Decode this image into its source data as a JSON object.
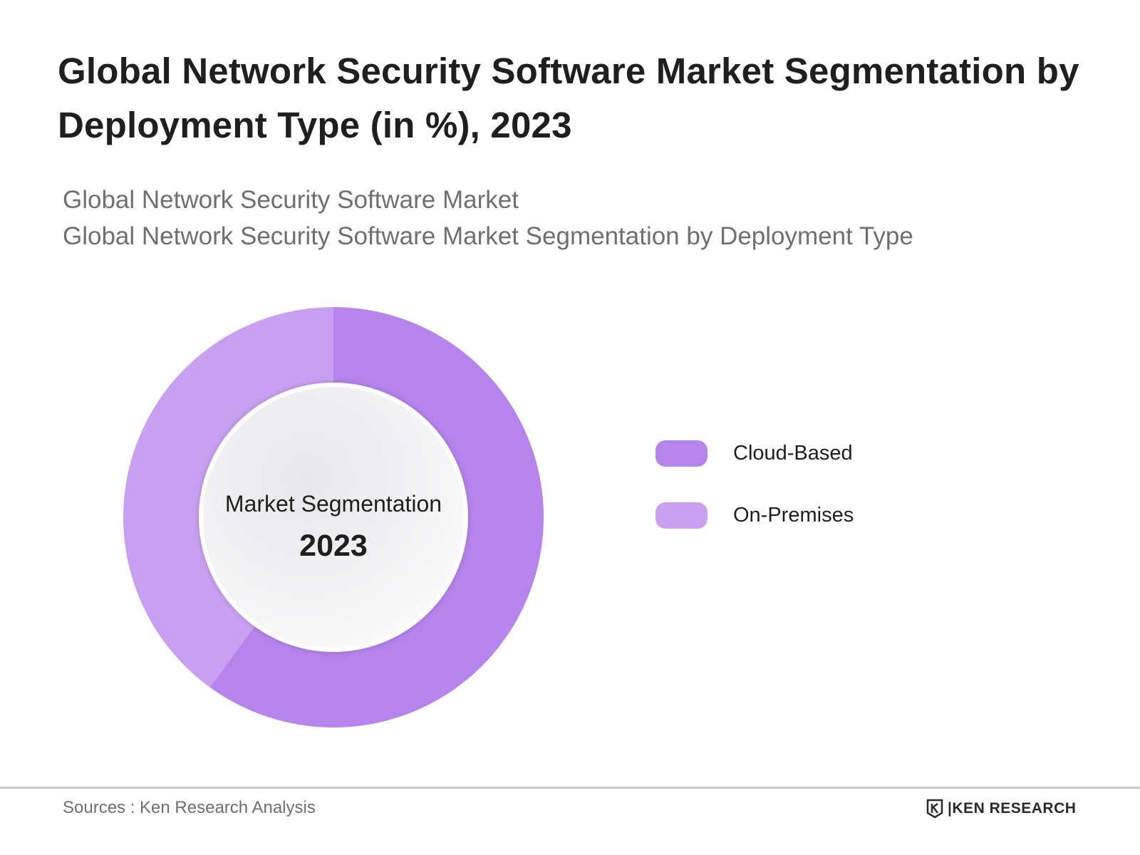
{
  "title": "Global Network Security Software Market Segmentation by  Deployment Type (in %), 2023",
  "subtitle": {
    "line1": "Global Network Security Software Market",
    "line2": "Global Network Security Software Market Segmentation by Deployment Type"
  },
  "center_label": {
    "line1": "Market Segmentation",
    "line2": "2023"
  },
  "footer": {
    "source": "Sources : Ken Research Analysis",
    "brand": "KEN RESEARCH",
    "brand_separator": "|"
  },
  "colors": {
    "cloud_based": "#b584ec",
    "on_premises": "#c99ff0",
    "center_fill": "#efeff1"
  },
  "chart_data": {
    "type": "pie",
    "variant": "donut",
    "categories": [
      "Cloud-Based",
      "On-Premises"
    ],
    "values": [
      60,
      40
    ],
    "units": "%",
    "legend_position": "right"
  }
}
